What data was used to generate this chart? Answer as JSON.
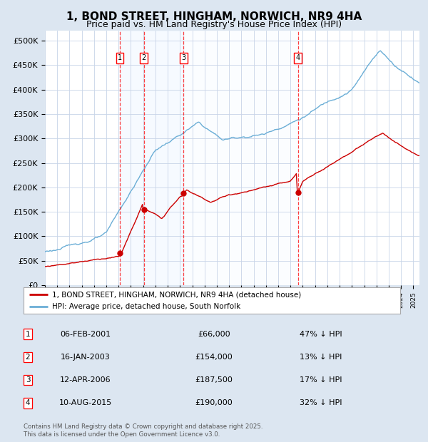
{
  "title": "1, BOND STREET, HINGHAM, NORWICH, NR9 4HA",
  "subtitle": "Price paid vs. HM Land Registry's House Price Index (HPI)",
  "ylabel_ticks": [
    "£0",
    "£50K",
    "£100K",
    "£150K",
    "£200K",
    "£250K",
    "£300K",
    "£350K",
    "£400K",
    "£450K",
    "£500K"
  ],
  "ytick_values": [
    0,
    50000,
    100000,
    150000,
    200000,
    250000,
    300000,
    350000,
    400000,
    450000,
    500000
  ],
  "ylim": [
    0,
    520000
  ],
  "xlim_start": 1995.0,
  "xlim_end": 2025.5,
  "hpi_color": "#6baed6",
  "price_color": "#cc0000",
  "background_color": "#dce6f1",
  "plot_bg_color": "#ffffff",
  "grid_color": "#c8d4e8",
  "shade_color": "#ddeeff",
  "transactions": [
    {
      "num": 1,
      "date": "06-FEB-2001",
      "year": 2001.1,
      "price": 66000,
      "pct": "47%",
      "dir": "↓"
    },
    {
      "num": 2,
      "date": "16-JAN-2003",
      "year": 2003.05,
      "price": 154000,
      "pct": "13%",
      "dir": "↓"
    },
    {
      "num": 3,
      "date": "12-APR-2006",
      "year": 2006.28,
      "price": 187500,
      "pct": "17%",
      "dir": "↓"
    },
    {
      "num": 4,
      "date": "10-AUG-2015",
      "year": 2015.61,
      "price": 190000,
      "pct": "32%",
      "dir": "↓"
    }
  ],
  "legend_house": "1, BOND STREET, HINGHAM, NORWICH, NR9 4HA (detached house)",
  "legend_hpi": "HPI: Average price, detached house, South Norfolk",
  "footnote": "Contains HM Land Registry data © Crown copyright and database right 2025.\nThis data is licensed under the Open Government Licence v3.0.",
  "title_fontsize": 11,
  "subtitle_fontsize": 9,
  "tick_fontsize": 8
}
